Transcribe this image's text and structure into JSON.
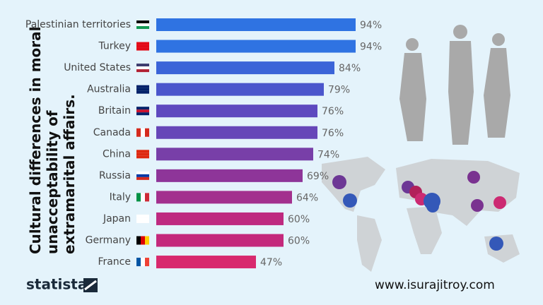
{
  "chart_data": {
    "type": "bar",
    "orientation": "horizontal",
    "title": "Cultural differences in moral unacceptability of extramarital affairs.",
    "categories": [
      "Palestinian territories",
      "Turkey",
      "United States",
      "Australia",
      "Britain",
      "Canada",
      "China",
      "Russia",
      "Italy",
      "Japan",
      "Germany",
      "France"
    ],
    "values": [
      94,
      94,
      84,
      79,
      76,
      76,
      74,
      69,
      64,
      60,
      60,
      47
    ],
    "value_labels": [
      "94%",
      "94%",
      "84%",
      "79%",
      "76%",
      "76%",
      "74%",
      "69%",
      "64%",
      "60%",
      "60%",
      "47%"
    ],
    "colors": [
      "#2f73e2",
      "#2f73e2",
      "#3b64d8",
      "#4b56cc",
      "#5e49bf",
      "#6646b8",
      "#783fa8",
      "#8e3599",
      "#a3308e",
      "#be2a80",
      "#c4297c",
      "#d8296e"
    ],
    "xlim": [
      0,
      100
    ]
  },
  "brand": "statista",
  "website": "www.isurajitroy.com"
}
